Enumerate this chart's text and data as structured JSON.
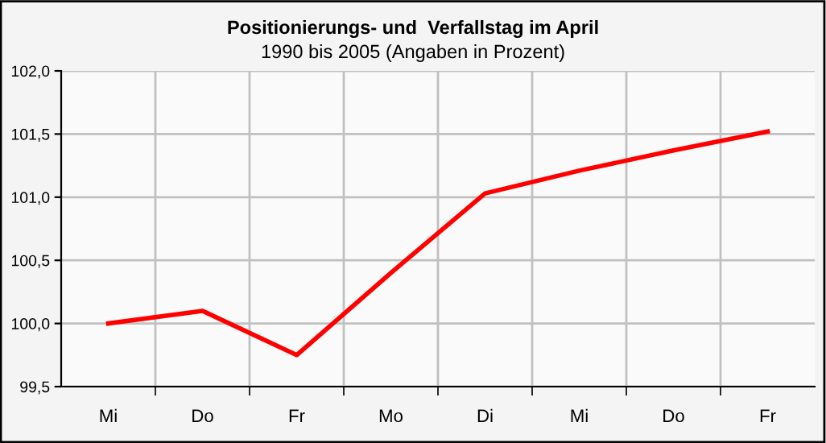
{
  "chart_data": {
    "type": "line",
    "title": "Positionierungs- und  Verfallstag im April",
    "subtitle": "1990 bis 2005 (Angaben in Prozent)",
    "categories": [
      "Mi",
      "Do",
      "Fr",
      "Mo",
      "Di",
      "Mi",
      "Do",
      "Fr"
    ],
    "series": [
      {
        "color": "#ff0000",
        "values": [
          100.0,
          100.1,
          99.75,
          100.4,
          101.03,
          101.21,
          101.37,
          101.52
        ]
      }
    ],
    "ylim": [
      99.5,
      102.0
    ],
    "yticks": [
      {
        "value": 99.5,
        "label": "99,5"
      },
      {
        "value": 100.0,
        "label": "100,0"
      },
      {
        "value": 100.5,
        "label": "100,5"
      },
      {
        "value": 101.0,
        "label": "101,0"
      },
      {
        "value": 101.5,
        "label": "101,5"
      },
      {
        "value": 102.0,
        "label": "102,0"
      }
    ],
    "grid": true,
    "marker": "none",
    "line_style": "solid"
  }
}
